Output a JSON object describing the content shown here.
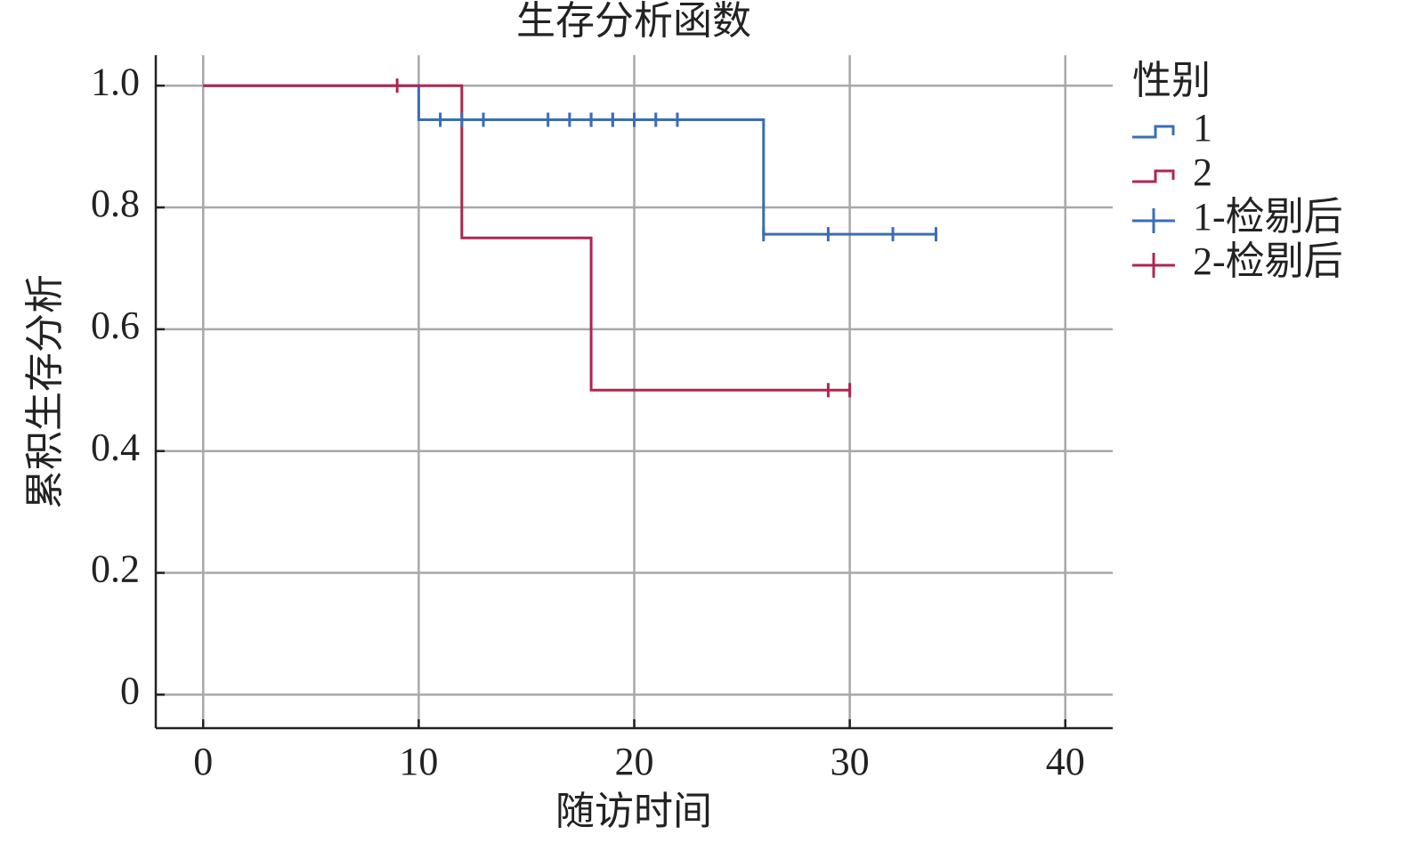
{
  "chart_data": {
    "type": "step",
    "title": "生存分析函数",
    "x_label": "随访时间",
    "y_label": "累积生存分析",
    "legend_title": "性别",
    "xlim": [
      -2.2,
      42.2
    ],
    "xticks": [
      0,
      10,
      20,
      30,
      40
    ],
    "ylim": [
      -0.055,
      1.05
    ],
    "yticks": [
      {
        "value": 0,
        "label": "0"
      },
      {
        "value": 0.2,
        "label": "0.2"
      },
      {
        "value": 0.4,
        "label": "0.4"
      },
      {
        "value": 0.6,
        "label": "0.6"
      },
      {
        "value": 0.8,
        "label": "0.8"
      },
      {
        "value": 1,
        "label": "1.0"
      }
    ],
    "grid": true,
    "series": [
      {
        "name": "1",
        "kind": "step",
        "color": "#3a6db5",
        "x": [
          0,
          10,
          26,
          34
        ],
        "values": [
          1,
          0.944,
          0.756,
          0.756
        ]
      },
      {
        "name": "2",
        "kind": "step",
        "color": "#b0254f",
        "x": [
          0,
          12,
          18,
          30
        ],
        "values": [
          1,
          0.75,
          0.5,
          0.5
        ]
      },
      {
        "name": "1-检剔后",
        "kind": "censor",
        "color": "#3a6db5",
        "x": [
          11,
          12,
          13,
          16,
          17,
          18,
          18,
          19,
          19,
          20,
          21,
          22,
          26,
          29,
          32,
          34
        ],
        "values": [
          0.944,
          0.944,
          0.944,
          0.944,
          0.944,
          0.944,
          0.944,
          0.944,
          0.944,
          0.944,
          0.944,
          0.944,
          0.756,
          0.756,
          0.756,
          0.756
        ]
      },
      {
        "name": "2-检剔后",
        "kind": "censor",
        "color": "#b0254f",
        "x": [
          9,
          29,
          30
        ],
        "values": [
          1,
          0.5,
          0.5
        ]
      }
    ]
  }
}
